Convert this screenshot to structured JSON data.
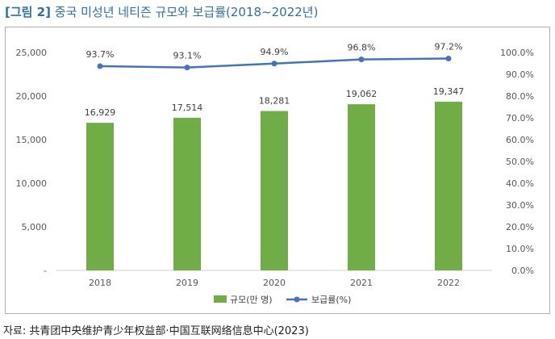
{
  "figure": {
    "tag": "[그림 2]",
    "title": "중국 미성년 네티즌 규모와 보급률(2018~2022년)"
  },
  "source": "자료: 共青团中央维护青少年权益部·中国互联网络信息中心(2023)",
  "chart_data": {
    "type": "bar+line",
    "categories": [
      "2018",
      "2019",
      "2020",
      "2021",
      "2022"
    ],
    "series": [
      {
        "name": "규모(만 명)",
        "type": "bar",
        "axis": "left",
        "values": [
          16929,
          17514,
          18281,
          19062,
          19347
        ],
        "labels": [
          "16,929",
          "17,514",
          "18,281",
          "19,062",
          "19,347"
        ],
        "color": "#70ad47"
      },
      {
        "name": "보급률(%)",
        "type": "line",
        "axis": "right",
        "values": [
          93.7,
          93.1,
          94.9,
          96.8,
          97.2
        ],
        "labels": [
          "93.7%",
          "93.1%",
          "94.9%",
          "96.8%",
          "97.2%"
        ],
        "color": "#4472c4"
      }
    ],
    "y_left": {
      "ylim": [
        0,
        25000
      ],
      "ticks": [
        0,
        5000,
        10000,
        15000,
        20000,
        25000
      ],
      "tick_labels": [
        "-",
        "5,000",
        "10,000",
        "15,000",
        "20,000",
        "25,000"
      ]
    },
    "y_right": {
      "ylim": [
        0,
        100
      ],
      "ticks": [
        0,
        10,
        20,
        30,
        40,
        50,
        60,
        70,
        80,
        90,
        100
      ],
      "tick_labels": [
        "0.0%",
        "10.0%",
        "20.0%",
        "30.0%",
        "40.0%",
        "50.0%",
        "60.0%",
        "70.0%",
        "80.0%",
        "90.0%",
        "100.0%"
      ]
    },
    "grid": false,
    "legend_position": "bottom"
  }
}
